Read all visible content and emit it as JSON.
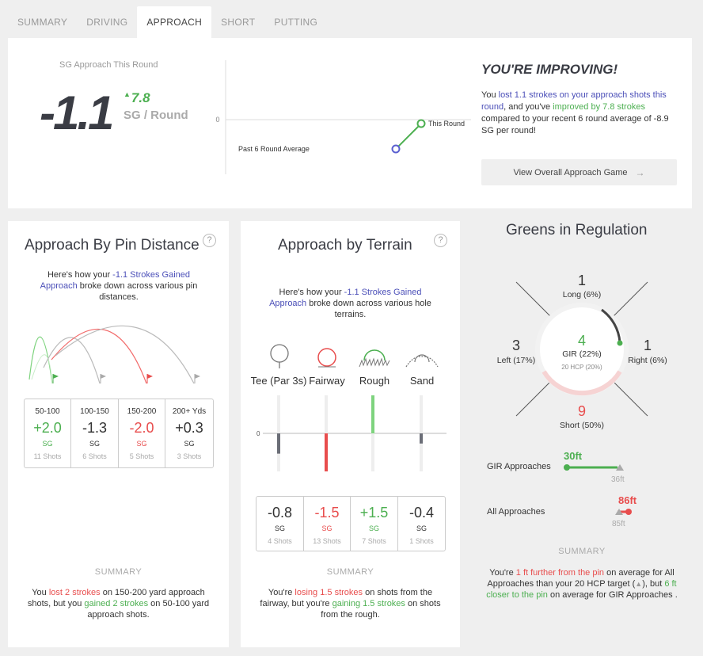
{
  "tabs": [
    "SUMMARY",
    "DRIVING",
    "APPROACH",
    "SHORT",
    "PUTTING"
  ],
  "top": {
    "sg_label": "SG Approach This Round",
    "sg_value": "-1.1",
    "delta_value": "7.8",
    "per_round": "SG / Round",
    "trend": {
      "zero_label": "0",
      "past_label": "Past 6 Round Average",
      "this_label": "This Round"
    },
    "headline": "YOU'RE IMPROVING!",
    "text": {
      "p1": "You ",
      "lost": "lost 1.1 strokes on your approach shots this round",
      "p2": ", and you've ",
      "improved": "improved by 7.8 strokes",
      "p3": " compared to your recent 6 round average of -8.9 SG per round!"
    },
    "button_label": "View Overall Approach Game",
    "colors": {
      "blue": "#4b4fb8",
      "green": "#4caf50",
      "red": "#e84d4d"
    }
  },
  "pin": {
    "title": "Approach By Pin Distance",
    "help": "?",
    "intro": {
      "p1": "Here's how your ",
      "link": "-1.1 Strokes Gained Approach",
      "p2": " broke down across various pin distances."
    },
    "rows": [
      {
        "cat": "50-100",
        "val": "+2.0",
        "sg": "SG",
        "shots": "11 Shots",
        "tone": "green"
      },
      {
        "cat": "100-150",
        "val": "-1.3",
        "sg": "SG",
        "shots": "6 Shots",
        "tone": "gray"
      },
      {
        "cat": "150-200",
        "val": "-2.0",
        "sg": "SG",
        "shots": "5 Shots",
        "tone": "red"
      },
      {
        "cat": "200+ Yds",
        "val": "+0.3",
        "sg": "SG",
        "shots": "3 Shots",
        "tone": "gray"
      }
    ],
    "summary_h": "SUMMARY",
    "summary": {
      "p1": "You ",
      "lost": "lost 2 strokes",
      "p2": " on 150-200 yard approach shots, but you ",
      "gained": "gained 2 strokes",
      "p3": " on 50-100 yard approach shots."
    }
  },
  "terrain": {
    "title": "Approach by Terrain",
    "help": "?",
    "intro": {
      "p1": "Here's how your ",
      "link": "-1.1 Strokes Gained Approach",
      "p2": " broke down across various hole terrains."
    },
    "labels": [
      "Tee (Par 3s)",
      "Fairway",
      "Rough",
      "Sand"
    ],
    "icons": [
      "tee-icon",
      "fairway-icon",
      "rough-icon",
      "sand-icon"
    ],
    "zero_label": "0",
    "bar_values": [
      -0.8,
      -1.5,
      1.5,
      -0.4
    ],
    "rows": [
      {
        "val": "-0.8",
        "sg": "SG",
        "shots": "4 Shots",
        "tone": "gray"
      },
      {
        "val": "-1.5",
        "sg": "SG",
        "shots": "13 Shots",
        "tone": "red"
      },
      {
        "val": "+1.5",
        "sg": "SG",
        "shots": "7 Shots",
        "tone": "green"
      },
      {
        "val": "-0.4",
        "sg": "SG",
        "shots": "1 Shots",
        "tone": "gray"
      }
    ],
    "summary_h": "SUMMARY",
    "summary": {
      "p1": "You're ",
      "losing": "losing 1.5 strokes",
      "p2": " on shots from the fairway, but you're ",
      "gaining": "gaining 1.5 strokes",
      "p3": " on shots from the rough."
    }
  },
  "gir": {
    "title": "Greens in Regulation",
    "long": {
      "n": "1",
      "l": "Long (6%)"
    },
    "left": {
      "n": "3",
      "l": "Left (17%)"
    },
    "right": {
      "n": "1",
      "l": "Right (6%)"
    },
    "short": {
      "n": "9",
      "l": "Short (50%)"
    },
    "center": {
      "n": "4",
      "l": "GIR (22%)",
      "hcp": "20 HCP (20%)"
    },
    "gir_approaches": {
      "label": "GIR Approaches",
      "value": "30ft",
      "target": "36ft"
    },
    "all_approaches": {
      "label": "All Approaches",
      "value": "86ft",
      "target": "85ft"
    },
    "summary_h": "SUMMARY",
    "summary": {
      "p1": "You're ",
      "further": "1 ft further from the pin",
      "p2": " on average for All Approaches than your 20 HCP target (",
      "tri": "▲",
      "p3": "), but ",
      "closer": "6 ft closer to the pin",
      "p4": " on average for GIR Approaches ."
    }
  }
}
